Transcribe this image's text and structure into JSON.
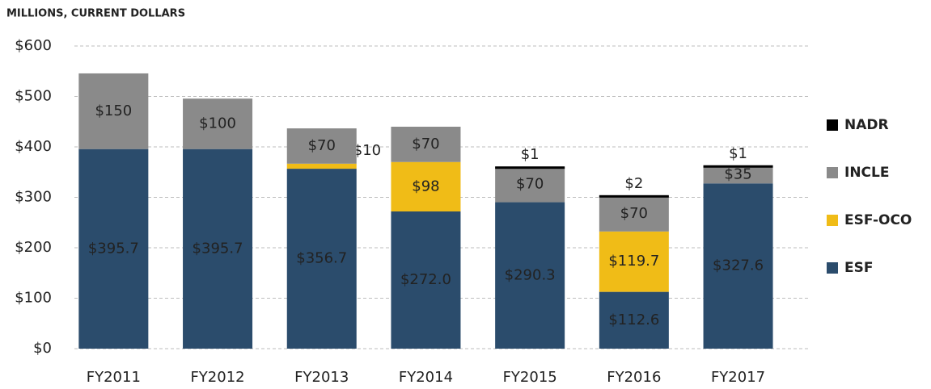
{
  "chart_data": {
    "type": "stacked_bar",
    "title": "MILLIONS, CURRENT DOLLARS",
    "categories": [
      "FY2011",
      "FY2012",
      "FY2013",
      "FY2014",
      "FY2015",
      "FY2016",
      "FY2017"
    ],
    "series": [
      {
        "name": "ESF",
        "color": "#2b4c6c",
        "values": [
          395.7,
          395.7,
          356.7,
          272.0,
          290.3,
          112.6,
          327.6
        ],
        "value_labels": [
          "$395.7",
          "$395.7",
          "$356.7",
          "$272.0",
          "$290.3",
          "$112.6",
          "$327.6"
        ]
      },
      {
        "name": "ESF-OCO",
        "color": "#f0bc17",
        "values": [
          null,
          null,
          10,
          98,
          null,
          119.7,
          null
        ],
        "value_labels": [
          null,
          null,
          "$10",
          "$98",
          null,
          "$119.7",
          null
        ]
      },
      {
        "name": "INCLE",
        "color": "#8a8a8a",
        "values": [
          150,
          100,
          70,
          70,
          70,
          70,
          35
        ],
        "value_labels": [
          "$150",
          "$100",
          "$70",
          "$70",
          "$70",
          "$70",
          "$35"
        ]
      },
      {
        "name": "NADR",
        "color": "#000000",
        "values": [
          null,
          null,
          null,
          null,
          1,
          2,
          1
        ],
        "value_labels": [
          null,
          null,
          null,
          null,
          "$1",
          "$2",
          "$1"
        ]
      }
    ],
    "ylim": [
      0,
      600
    ],
    "yticks": [
      {
        "value": 0,
        "label": "$0"
      },
      {
        "value": 100,
        "label": "$100"
      },
      {
        "value": 200,
        "label": "$200"
      },
      {
        "value": 300,
        "label": "$300"
      },
      {
        "value": 400,
        "label": "$400"
      },
      {
        "value": 500,
        "label": "$500"
      },
      {
        "value": 600,
        "label": "$600"
      }
    ],
    "grid": true,
    "legend": "right"
  }
}
